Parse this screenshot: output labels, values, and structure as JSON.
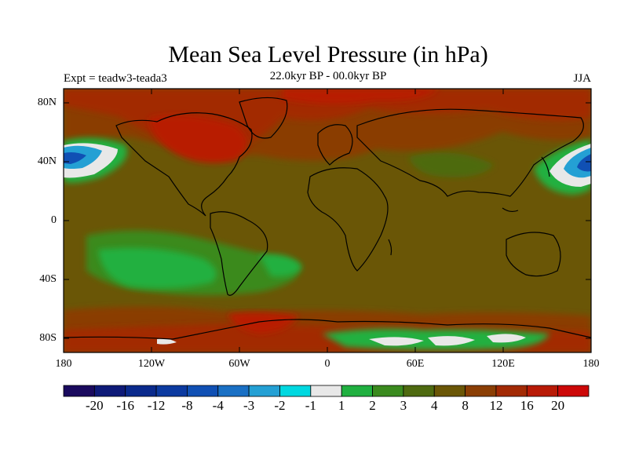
{
  "title": "Mean Sea Level Pressure (in hPa)",
  "experiment": "Expt = teadw3-teada3",
  "period": "22.0kyr BP - 00.0kyr BP",
  "season": "JJA",
  "map": {
    "lat_labels": [
      "80N",
      "40N",
      "0",
      "40S",
      "80S"
    ],
    "lon_labels": [
      "180",
      "120W",
      "60W",
      "0",
      "60E",
      "120E",
      "180"
    ],
    "lon_range": [
      -180,
      180
    ],
    "lat_range": [
      -90,
      90
    ]
  },
  "colorbar": {
    "labels": [
      "-20",
      "-16",
      "-12",
      "-8",
      "-4",
      "-3",
      "-2",
      "-1",
      "1",
      "2",
      "3",
      "4",
      "8",
      "12",
      "16",
      "20"
    ],
    "colors": [
      "#1a0a5e",
      "#0e1a78",
      "#0a2a8c",
      "#0c3aa0",
      "#1050b4",
      "#1a70c4",
      "#24a0d4",
      "#00d8e0",
      "#e8e8e8",
      "#20b040",
      "#3a8a1e",
      "#4e6a10",
      "#6a5606",
      "#8a3e04",
      "#a22a04",
      "#b81a06",
      "#cc0808"
    ]
  }
}
